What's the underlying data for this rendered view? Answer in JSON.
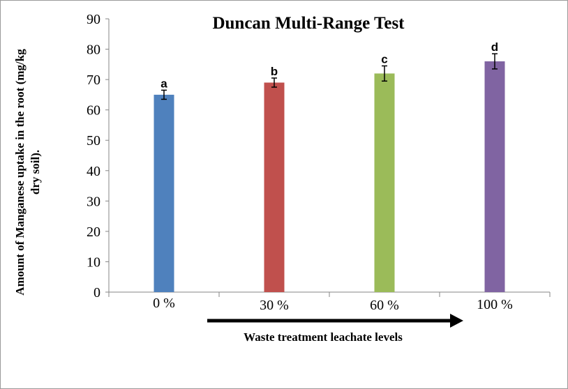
{
  "chart_data": {
    "type": "bar",
    "title": "Duncan Multi-Range Test",
    "xlabel": "Waste treatment leachate levels",
    "ylabel_lines": [
      "Amount of Manganese uptake in the root (mg/kg",
      "dry soil)."
    ],
    "ylim": [
      0,
      90
    ],
    "yticks": [
      0,
      10,
      20,
      30,
      40,
      50,
      60,
      70,
      80,
      90
    ],
    "categories": [
      "0 %",
      "30 %",
      "60 %",
      "100 %"
    ],
    "values": [
      65,
      69,
      72,
      76
    ],
    "errors": [
      1.5,
      1.5,
      2.5,
      2.5
    ],
    "group_labels": [
      "a",
      "b",
      "c",
      "d"
    ],
    "colors": [
      "#4f81bd",
      "#c0504d",
      "#9bbb59",
      "#8064a2"
    ],
    "gridlines": false,
    "legend": "none"
  }
}
